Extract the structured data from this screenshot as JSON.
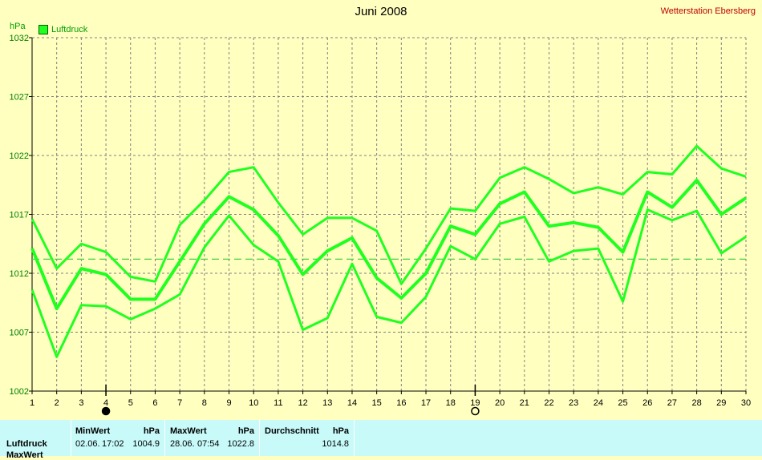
{
  "header": {
    "title": "Juni 2008",
    "station": "Wetterstation Ebersberg",
    "unit": "hPa",
    "legend_label": "Luftdruck"
  },
  "colors": {
    "background": "#ffffc0",
    "series": "#20ff20",
    "average_line": "#40d040",
    "grid": "#808080",
    "table_bg": "#c8fafa"
  },
  "chart_data": {
    "type": "line",
    "title": "Juni 2008",
    "ylabel": "hPa",
    "ylim": [
      1002,
      1032
    ],
    "xlim": [
      1,
      30
    ],
    "x": [
      1,
      2,
      3,
      4,
      5,
      6,
      7,
      8,
      9,
      10,
      11,
      12,
      13,
      14,
      15,
      16,
      17,
      18,
      19,
      20,
      21,
      22,
      23,
      24,
      25,
      26,
      27,
      28,
      29,
      30
    ],
    "x_ticks": [
      1,
      2,
      3,
      4,
      5,
      6,
      7,
      8,
      9,
      10,
      11,
      12,
      13,
      14,
      15,
      16,
      17,
      18,
      19,
      20,
      21,
      22,
      23,
      24,
      25,
      26,
      27,
      28,
      29,
      30
    ],
    "y_ticks": [
      1002,
      1007,
      1012,
      1017,
      1022,
      1027,
      1032
    ],
    "grid": true,
    "legend": "top-left",
    "series": [
      {
        "name": "Luftdruck",
        "role": "max",
        "values": [
          1016.6,
          1012.4,
          1014.5,
          1013.8,
          1011.7,
          1011.3,
          1016.1,
          1018.2,
          1020.6,
          1021.0,
          1018.0,
          1015.3,
          1016.7,
          1016.7,
          1015.6,
          1011.1,
          1014.1,
          1017.5,
          1017.3,
          1020.1,
          1021.0,
          1020.0,
          1018.8,
          1019.3,
          1018.7,
          1020.6,
          1020.4,
          1022.8,
          1020.9,
          1020.2
        ]
      },
      {
        "name": "Luftdruck",
        "role": "avg",
        "values": [
          1014.1,
          1009.0,
          1012.4,
          1011.9,
          1009.8,
          1009.8,
          1013.0,
          1016.2,
          1018.5,
          1017.4,
          1015.2,
          1011.9,
          1013.9,
          1015.0,
          1011.6,
          1009.9,
          1012.0,
          1016.0,
          1015.3,
          1017.9,
          1018.9,
          1016.0,
          1016.3,
          1015.9,
          1013.8,
          1018.9,
          1017.6,
          1019.9,
          1017.0,
          1018.4
        ]
      },
      {
        "name": "Luftdruck",
        "role": "min",
        "values": [
          1010.6,
          1004.9,
          1009.3,
          1009.2,
          1008.1,
          1009.0,
          1010.2,
          1014.2,
          1016.9,
          1014.4,
          1013.0,
          1007.2,
          1008.2,
          1012.8,
          1008.3,
          1007.8,
          1010.0,
          1014.3,
          1013.2,
          1016.2,
          1016.8,
          1013.0,
          1013.9,
          1014.1,
          1009.6,
          1017.4,
          1016.5,
          1017.3,
          1013.7,
          1015.1
        ]
      }
    ],
    "average": 1013.2,
    "moon_markers": [
      {
        "x": 4,
        "phase": "new"
      },
      {
        "x": 19,
        "phase": "full"
      }
    ]
  },
  "table": {
    "row_label": "Luftdruck",
    "row_label_2": "MaxWert",
    "min_header": "MinWert",
    "max_header": "MaxWert",
    "avg_header": "Durchschnitt",
    "unit": "hPa",
    "min_date": "02.06.",
    "min_time": "17:02",
    "min_value": "1004.9",
    "max_date": "28.06.",
    "max_time": "07:54",
    "max_value": "1022.8",
    "avg_value": "1014.8"
  }
}
